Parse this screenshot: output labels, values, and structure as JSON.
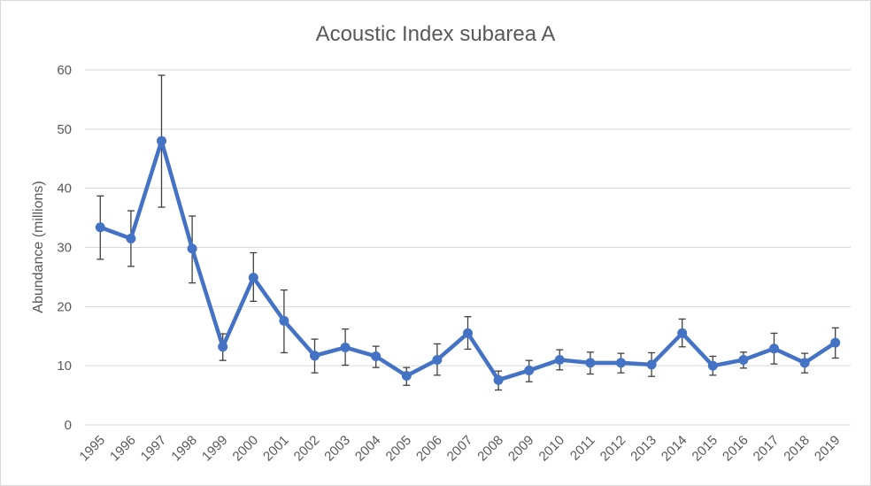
{
  "chart_data": {
    "type": "line",
    "title": "Acoustic Index subarea A",
    "xlabel": "",
    "ylabel": "Abundance (millions)",
    "ylim": [
      0,
      60
    ],
    "yticks": [
      0,
      10,
      20,
      30,
      40,
      50,
      60
    ],
    "grid": true,
    "legend": "none",
    "categories": [
      "1995",
      "1996",
      "1997",
      "1998",
      "1999",
      "2000",
      "2001",
      "2002",
      "2003",
      "2004",
      "2005",
      "2006",
      "2007",
      "2008",
      "2009",
      "2010",
      "2011",
      "2012",
      "2013",
      "2014",
      "2015",
      "2016",
      "2017",
      "2018",
      "2019"
    ],
    "series": [
      {
        "color": "#4472c4",
        "values": [
          33.4,
          31.5,
          48.0,
          29.8,
          13.2,
          24.9,
          17.6,
          11.7,
          13.1,
          11.6,
          8.3,
          11.0,
          15.5,
          7.6,
          9.2,
          11.0,
          10.5,
          10.5,
          10.2,
          15.5,
          10.0,
          11.0,
          12.9,
          10.5,
          13.9
        ],
        "error_low": [
          28.0,
          26.8,
          36.8,
          24.0,
          10.9,
          20.9,
          12.2,
          8.8,
          10.1,
          9.7,
          6.7,
          8.4,
          12.8,
          5.9,
          7.3,
          9.3,
          8.6,
          8.8,
          8.2,
          13.2,
          8.4,
          9.6,
          10.3,
          8.8,
          11.3
        ],
        "error_high": [
          38.7,
          36.2,
          59.1,
          35.3,
          15.4,
          29.1,
          22.8,
          14.5,
          16.2,
          13.3,
          9.7,
          13.7,
          18.3,
          9.1,
          10.9,
          12.7,
          12.3,
          12.1,
          12.2,
          17.9,
          11.6,
          12.3,
          15.5,
          12.1,
          16.4
        ]
      }
    ]
  }
}
